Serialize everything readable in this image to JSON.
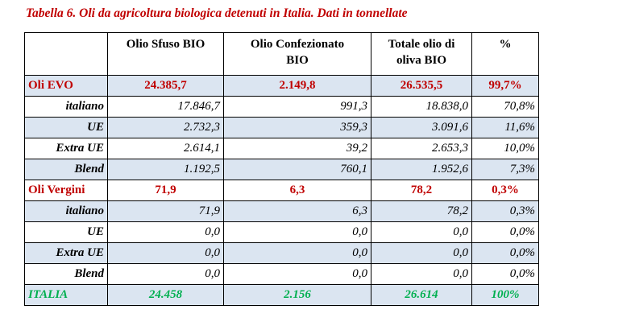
{
  "title": "Tabella 6. Oli da agricoltura biologica detenuti in Italia. Dati in tonnellate",
  "table": {
    "header": [
      "",
      "Olio Sfuso BIO",
      "Olio Confezionato BIO",
      "Totale olio di oliva BIO",
      "%"
    ],
    "rows": [
      [
        "Oli EVO",
        "24.385,7",
        "2.149,8",
        "26.535,5",
        "99,7%"
      ],
      [
        "italiano",
        "17.846,7",
        "991,3",
        "18.838,0",
        "70,8%"
      ],
      [
        "UE",
        "2.732,3",
        "359,3",
        "3.091,6",
        "11,6%"
      ],
      [
        "Extra UE",
        "2.614,1",
        "39,2",
        "2.653,3",
        "10,0%"
      ],
      [
        "Blend",
        "1.192,5",
        "760,1",
        "1.952,6",
        "7,3%"
      ],
      [
        "Oli Vergini",
        "71,9",
        "6,3",
        "78,2",
        "0,3%"
      ],
      [
        "italiano",
        "71,9",
        "6,3",
        "78,2",
        "0,3%"
      ],
      [
        "UE",
        "0,0",
        "0,0",
        "0,0",
        "0,0%"
      ],
      [
        "Extra UE",
        "0,0",
        "0,0",
        "0,0",
        "0,0%"
      ],
      [
        "Blend",
        "0,0",
        "0,0",
        "0,0",
        "0,0%"
      ],
      [
        "ITALIA",
        "24.458",
        "2.156",
        "26.614",
        "100%"
      ]
    ]
  }
}
